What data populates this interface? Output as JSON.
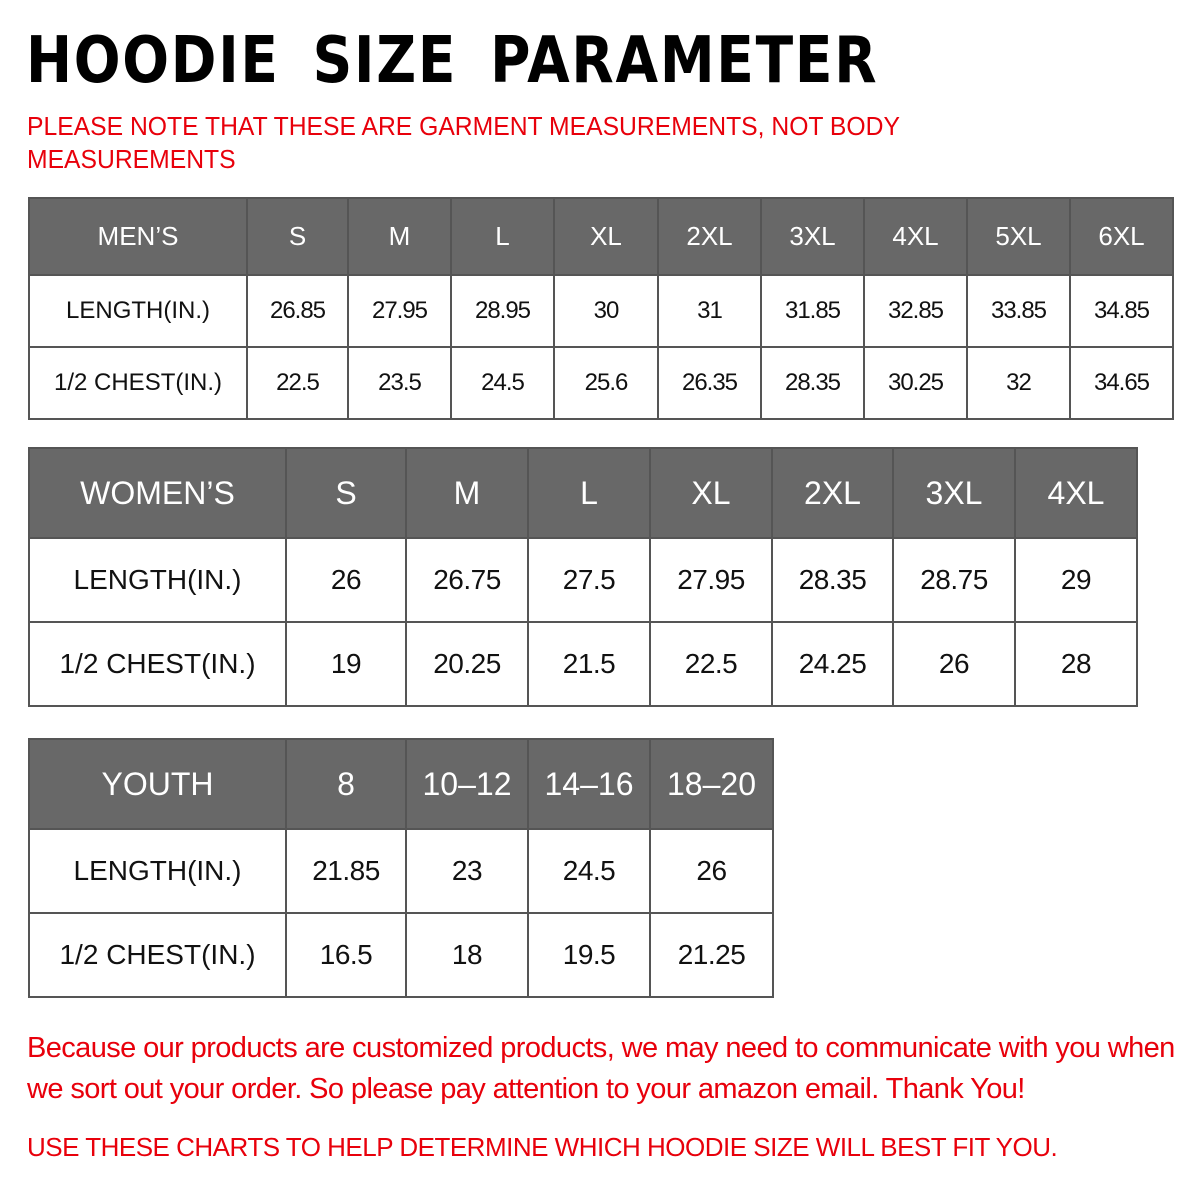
{
  "title": "HOODIE SIZE PARAMETER",
  "note": "PLEASE NOTE THAT THESE ARE GARMENT MEASUREMENTS, NOT BODY MEASUREMENTS",
  "mens": {
    "header": "MEN’S",
    "sizes": [
      "S",
      "M",
      "L",
      "XL",
      "2XL",
      "3XL",
      "4XL",
      "5XL",
      "6XL"
    ],
    "rows": [
      {
        "label": "LENGTH(IN.)",
        "values": [
          "26.85",
          "27.95",
          "28.95",
          "30",
          "31",
          "31.85",
          "32.85",
          "33.85",
          "34.85"
        ]
      },
      {
        "label": "1/2 CHEST(IN.)",
        "values": [
          "22.5",
          "23.5",
          "24.5",
          "25.6",
          "26.35",
          "28.35",
          "30.25",
          "32",
          "34.65"
        ]
      }
    ]
  },
  "womens": {
    "header": "WOMEN’S",
    "sizes": [
      "S",
      "M",
      "L",
      "XL",
      "2XL",
      "3XL",
      "4XL"
    ],
    "rows": [
      {
        "label": "LENGTH(IN.)",
        "values": [
          "26",
          "26.75",
          "27.5",
          "27.95",
          "28.35",
          "28.75",
          "29"
        ]
      },
      {
        "label": "1/2 CHEST(IN.)",
        "values": [
          "19",
          "20.25",
          "21.5",
          "22.5",
          "24.25",
          "26",
          "28"
        ]
      }
    ]
  },
  "youth": {
    "header": "YOUTH",
    "sizes": [
      "8",
      "10–12",
      "14–16",
      "18–20"
    ],
    "rows": [
      {
        "label": "LENGTH(IN.)",
        "values": [
          "21.85",
          "23",
          "24.5",
          "26"
        ]
      },
      {
        "label": "1/2 CHEST(IN.)",
        "values": [
          "16.5",
          "18",
          "19.5",
          "21.25"
        ]
      }
    ]
  },
  "message": "Because our products are customized products, we may need to communicate with you when we sort out your order. So please pay attention to your amazon email. Thank You!",
  "footer": "USE THESE CHARTS TO HELP DETERMINE WHICH HOODIE SIZE WILL BEST FIT YOU.",
  "colors": {
    "header_bg": "#686868",
    "accent_red": "#e8000b"
  }
}
